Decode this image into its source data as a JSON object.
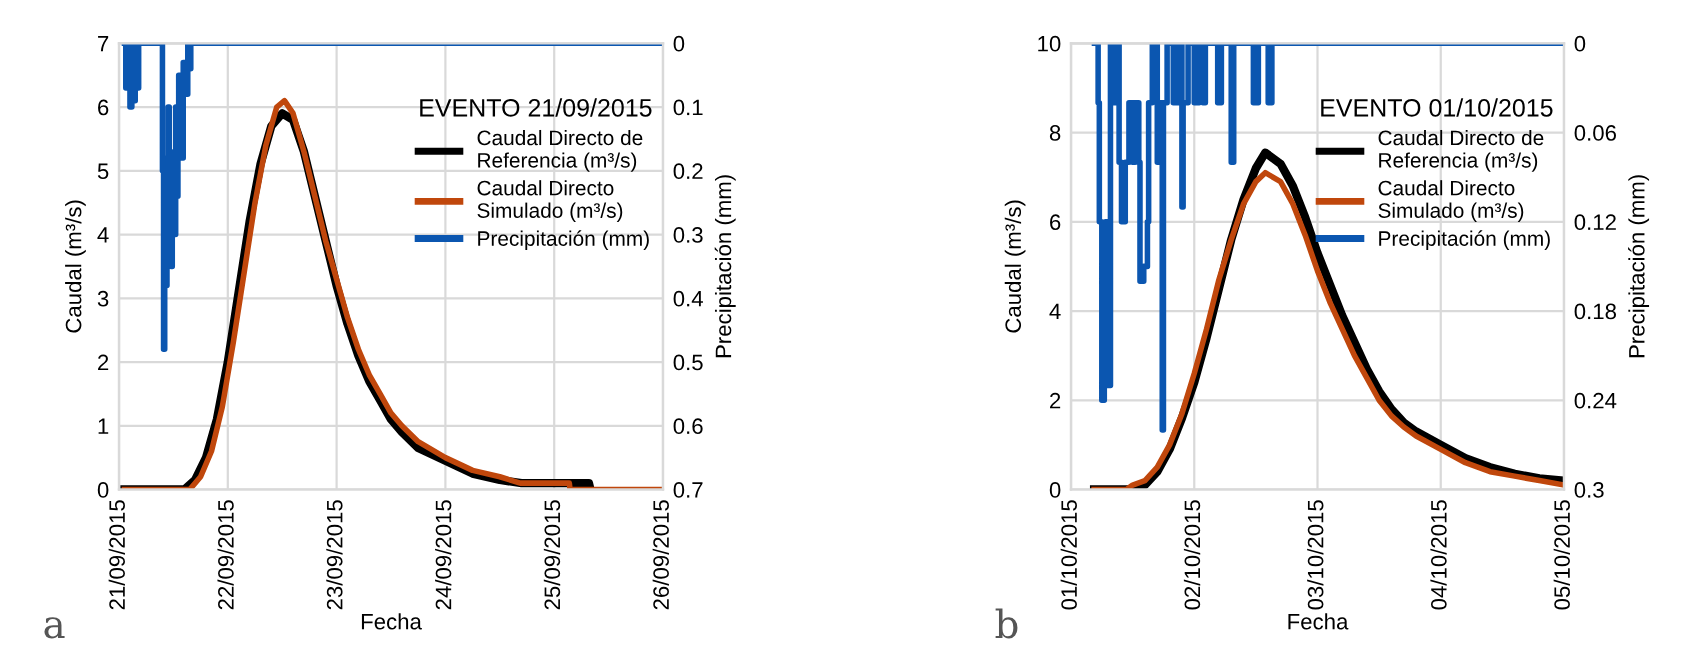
{
  "chart_data": [
    {
      "type": "line",
      "legend_title": "EVENTO 21/09/2015",
      "xlabel": "Fecha",
      "ylabel": "Caudal (m³/s)",
      "y2label": "Precipitación (mm)",
      "annotations": [
        "a"
      ],
      "legend": "top right",
      "grid": true,
      "xlim": [
        "2015-09-21",
        "2015-09-26"
      ],
      "xticks": [
        {
          "value": "2015-09-21",
          "label": "21/09/2015"
        },
        {
          "value": "2015-09-22",
          "label": "22/09/2015"
        },
        {
          "value": "2015-09-23",
          "label": "23/09/2015"
        },
        {
          "value": "2015-09-24",
          "label": "24/09/2015"
        },
        {
          "value": "2015-09-25",
          "label": "25/09/2015"
        },
        {
          "value": "2015-09-26",
          "label": "26/09/2015"
        }
      ],
      "ylim": [
        0,
        7
      ],
      "yticks": [
        0,
        1,
        2,
        3,
        4,
        5,
        6,
        7
      ],
      "y2lim": [
        0.7,
        0
      ],
      "y2ticks": [
        0,
        0.1,
        0.2,
        0.3,
        0.4,
        0.5,
        0.6,
        0.7
      ],
      "series": [
        {
          "name": "Caudal Directo de\nReferencia (m³/s)",
          "color": "#000000",
          "x": [
            "2015-09-21T01:12",
            "2015-09-21T14:24",
            "2015-09-21T16:48",
            "2015-09-21T19:12",
            "2015-09-21T21:36",
            "2015-09-22T00:00",
            "2015-09-22T02:24",
            "2015-09-22T04:48",
            "2015-09-22T07:12",
            "2015-09-22T09:36",
            "2015-09-22T12:00",
            "2015-09-22T14:24",
            "2015-09-22T16:48",
            "2015-09-22T19:12",
            "2015-09-22T21:36",
            "2015-09-23T00:00",
            "2015-09-23T02:24",
            "2015-09-23T04:48",
            "2015-09-23T07:12",
            "2015-09-23T09:36",
            "2015-09-23T12:00",
            "2015-09-23T14:24",
            "2015-09-23T18:00",
            "2015-09-24T00:00",
            "2015-09-24T06:00",
            "2015-09-24T12:00",
            "2015-09-24T16:48",
            "2015-09-25T07:40",
            "2015-09-25T08:00"
          ],
          "values": [
            0,
            0,
            0.15,
            0.5,
            1.1,
            2.0,
            3.1,
            4.2,
            5.1,
            5.7,
            5.9,
            5.8,
            5.3,
            4.6,
            3.9,
            3.2,
            2.6,
            2.1,
            1.7,
            1.4,
            1.1,
            0.9,
            0.65,
            0.45,
            0.25,
            0.15,
            0.1,
            0.1,
            0
          ]
        },
        {
          "name": "Caudal Directo\nSimulado (m³/s)",
          "color": "#c0470c",
          "x": [
            "2015-09-21T01:12",
            "2015-09-21T15:36",
            "2015-09-21T18:00",
            "2015-09-21T20:24",
            "2015-09-21T22:48",
            "2015-09-22T01:12",
            "2015-09-22T03:36",
            "2015-09-22T06:00",
            "2015-09-22T08:24",
            "2015-09-22T10:48",
            "2015-09-22T12:30",
            "2015-09-22T14:24",
            "2015-09-22T16:48",
            "2015-09-22T19:12",
            "2015-09-22T21:36",
            "2015-09-23T00:00",
            "2015-09-23T02:24",
            "2015-09-23T04:48",
            "2015-09-23T07:12",
            "2015-09-23T09:36",
            "2015-09-23T12:00",
            "2015-09-23T14:24",
            "2015-09-23T18:00",
            "2015-09-24T00:00",
            "2015-09-24T06:00",
            "2015-09-24T12:00",
            "2015-09-24T16:30",
            "2015-09-25T03:20",
            "2015-09-25T03:30",
            "2015-09-26T00:00"
          ],
          "values": [
            0,
            0,
            0.2,
            0.6,
            1.3,
            2.3,
            3.4,
            4.5,
            5.4,
            6.0,
            6.1,
            5.9,
            5.3,
            4.6,
            3.9,
            3.3,
            2.7,
            2.2,
            1.8,
            1.5,
            1.2,
            1.0,
            0.75,
            0.5,
            0.3,
            0.2,
            0.1,
            0.1,
            0,
            0
          ]
        },
        {
          "name": "Precipitación (mm)",
          "color": "#0b56b0",
          "type": "step",
          "axis": "y2",
          "x": [
            "2015-09-21T01:12",
            "2015-09-21T01:30",
            "2015-09-21T01:45",
            "2015-09-21T02:00",
            "2015-09-21T02:10",
            "2015-09-21T02:25",
            "2015-09-21T02:50",
            "2015-09-21T03:10",
            "2015-09-21T03:35",
            "2015-09-21T04:05",
            "2015-09-21T04:20",
            "2015-09-21T09:10",
            "2015-09-21T09:35",
            "2015-09-21T09:50",
            "2015-09-21T10:05",
            "2015-09-21T10:20",
            "2015-09-21T10:35",
            "2015-09-21T10:50",
            "2015-09-21T11:05",
            "2015-09-21T11:20",
            "2015-09-21T11:30",
            "2015-09-21T11:45",
            "2015-09-21T12:00",
            "2015-09-21T12:15",
            "2015-09-21T12:30",
            "2015-09-21T12:45",
            "2015-09-21T13:00",
            "2015-09-21T13:10",
            "2015-09-21T13:40",
            "2015-09-21T14:10",
            "2015-09-21T14:40",
            "2015-09-21T15:10",
            "2015-09-21T15:35",
            "2015-09-21T15:50",
            "2015-09-26T00:00"
          ],
          "values": [
            0,
            0.07,
            0.02,
            0.06,
            0,
            0.1,
            0.03,
            0.09,
            0,
            0.07,
            0,
            0,
            0.2,
            0.48,
            0.3,
            0.38,
            0.18,
            0.1,
            0.25,
            0.17,
            0.35,
            0.27,
            0.2,
            0.3,
            0.1,
            0.24,
            0.15,
            0.05,
            0.18,
            0.03,
            0.08,
            0,
            0.04,
            0,
            0
          ]
        }
      ]
    },
    {
      "type": "line",
      "legend_title": "EVENTO 01/10/2015",
      "xlabel": "Fecha",
      "ylabel": "Caudal (m³/s)",
      "y2label": "Precipitación (mm)",
      "annotations": [
        "b"
      ],
      "legend": "top right",
      "grid": true,
      "xlim": [
        "2015-10-01",
        "2015-10-05"
      ],
      "xticks": [
        {
          "value": "2015-10-01",
          "label": "01/10/2015"
        },
        {
          "value": "2015-10-02",
          "label": "02/10/2015"
        },
        {
          "value": "2015-10-03",
          "label": "03/10/2015"
        },
        {
          "value": "2015-10-04",
          "label": "04/10/2015"
        },
        {
          "value": "2015-10-05",
          "label": "05/10/2015"
        }
      ],
      "ylim": [
        0,
        10
      ],
      "yticks": [
        0,
        2,
        4,
        6,
        8,
        10
      ],
      "y2lim": [
        0.3,
        0
      ],
      "y2ticks": [
        0,
        0.06,
        0.12,
        0.18,
        0.24,
        0.3
      ],
      "series": [
        {
          "name": "Caudal Directo de\nReferencia (m³/s)",
          "color": "#000000",
          "x": [
            "2015-10-01T04:30",
            "2015-10-01T12:00",
            "2015-10-01T14:24",
            "2015-10-01T16:48",
            "2015-10-01T19:12",
            "2015-10-01T21:36",
            "2015-10-02T00:00",
            "2015-10-02T02:24",
            "2015-10-02T04:48",
            "2015-10-02T07:12",
            "2015-10-02T09:36",
            "2015-10-02T12:00",
            "2015-10-02T13:50",
            "2015-10-02T16:48",
            "2015-10-02T19:12",
            "2015-10-02T21:36",
            "2015-10-03T00:00",
            "2015-10-03T02:24",
            "2015-10-03T04:48",
            "2015-10-03T07:12",
            "2015-10-03T09:36",
            "2015-10-03T12:00",
            "2015-10-03T14:24",
            "2015-10-03T16:48",
            "2015-10-03T19:12",
            "2015-10-04T00:00",
            "2015-10-04T04:48",
            "2015-10-04T09:36",
            "2015-10-04T14:24",
            "2015-10-04T19:12",
            "2015-10-05T00:00"
          ],
          "values": [
            0,
            0,
            0.1,
            0.4,
            0.9,
            1.6,
            2.4,
            3.4,
            4.5,
            5.6,
            6.5,
            7.2,
            7.55,
            7.3,
            6.8,
            6.1,
            5.3,
            4.6,
            3.9,
            3.3,
            2.7,
            2.2,
            1.8,
            1.5,
            1.3,
            1.0,
            0.7,
            0.5,
            0.35,
            0.25,
            0.2
          ]
        },
        {
          "name": "Caudal Directo\nSimulado (m³/s)",
          "color": "#c0470c",
          "x": [
            "2015-10-01T04:30",
            "2015-10-01T10:48",
            "2015-10-01T12:00",
            "2015-10-01T14:24",
            "2015-10-01T16:48",
            "2015-10-01T19:12",
            "2015-10-01T21:36",
            "2015-10-02T00:00",
            "2015-10-02T02:24",
            "2015-10-02T04:48",
            "2015-10-02T07:12",
            "2015-10-02T09:36",
            "2015-10-02T12:00",
            "2015-10-02T13:50",
            "2015-10-02T16:48",
            "2015-10-02T19:12",
            "2015-10-02T21:36",
            "2015-10-03T00:00",
            "2015-10-03T02:24",
            "2015-10-03T04:48",
            "2015-10-03T07:12",
            "2015-10-03T09:36",
            "2015-10-03T12:00",
            "2015-10-03T14:24",
            "2015-10-03T16:48",
            "2015-10-03T19:12",
            "2015-10-04T00:00",
            "2015-10-04T04:48",
            "2015-10-04T09:36",
            "2015-10-04T14:24",
            "2015-10-04T19:12",
            "2015-10-05T00:00"
          ],
          "values": [
            0,
            0,
            0.1,
            0.2,
            0.5,
            1.0,
            1.7,
            2.6,
            3.6,
            4.7,
            5.6,
            6.4,
            6.9,
            7.1,
            6.9,
            6.4,
            5.7,
            4.9,
            4.2,
            3.6,
            3.0,
            2.5,
            2.0,
            1.65,
            1.4,
            1.2,
            0.9,
            0.6,
            0.4,
            0.3,
            0.2,
            0.1
          ]
        },
        {
          "name": "Precipitación (mm)",
          "color": "#0b56b0",
          "type": "step",
          "axis": "y2",
          "x": [
            "2015-10-01T04:34",
            "2015-10-01T05:17",
            "2015-10-01T05:31",
            "2015-10-01T06:00",
            "2015-10-01T06:29",
            "2015-10-01T06:43",
            "2015-10-01T07:12",
            "2015-10-01T07:41",
            "2015-10-01T08:10",
            "2015-10-01T08:53",
            "2015-10-01T09:22",
            "2015-10-01T09:50",
            "2015-10-01T10:34",
            "2015-10-01T11:17",
            "2015-10-01T12:00",
            "2015-10-01T12:29",
            "2015-10-01T13:12",
            "2015-10-01T13:26",
            "2015-10-01T14:10",
            "2015-10-01T14:53",
            "2015-10-01T15:07",
            "2015-10-01T15:50",
            "2015-10-01T16:48",
            "2015-10-01T17:17",
            "2015-10-01T17:46",
            "2015-10-01T18:00",
            "2015-10-01T18:43",
            "2015-10-01T19:55",
            "2015-10-01T20:53",
            "2015-10-01T21:36",
            "2015-10-01T21:50",
            "2015-10-01T22:48",
            "2015-10-02T00:00",
            "2015-10-02T00:58",
            "2015-10-02T01:41",
            "2015-10-02T02:10",
            "2015-10-02T04:34",
            "2015-10-02T05:17",
            "2015-10-02T07:12",
            "2015-10-02T07:41",
            "2015-10-02T11:31",
            "2015-10-02T12:29",
            "2015-10-02T14:24",
            "2015-10-02T15:07",
            "2015-10-05T00:00"
          ],
          "values": [
            0,
            0.04,
            0.12,
            0.24,
            0.23,
            0.12,
            0.23,
            0,
            0.04,
            0,
            0.08,
            0.12,
            0.08,
            0.04,
            0.08,
            0.04,
            0.08,
            0.16,
            0.15,
            0.12,
            0.04,
            0,
            0.08,
            0.04,
            0.26,
            0.04,
            0,
            0.04,
            0,
            0.11,
            0.04,
            0,
            0.04,
            0,
            0.04,
            0,
            0.04,
            0,
            0.08,
            0,
            0.04,
            0,
            0.04,
            0,
            0
          ]
        }
      ]
    }
  ]
}
